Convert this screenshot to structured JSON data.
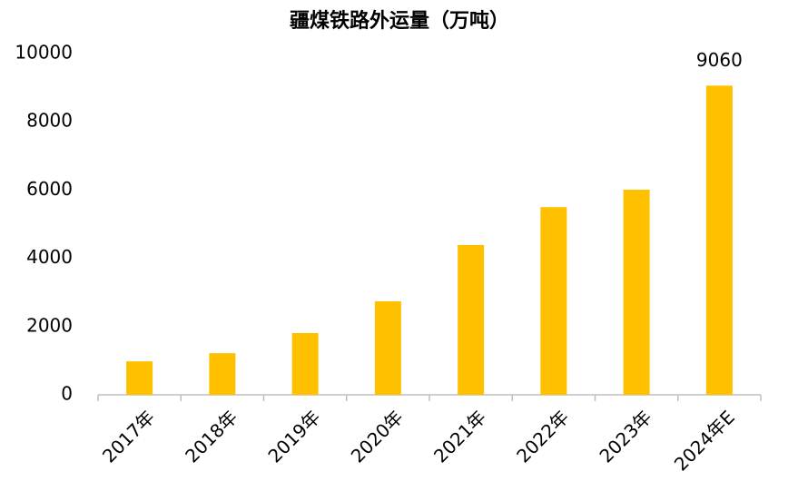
{
  "chart_data": {
    "type": "bar",
    "title": "疆煤铁路外运量（万吨）",
    "categories": [
      "2017年",
      "2018年",
      "2019年",
      "2020年",
      "2021年",
      "2022年",
      "2023年",
      "2024年E"
    ],
    "values": [
      980,
      1220,
      1810,
      2740,
      4390,
      5500,
      6010,
      9060
    ],
    "value_labels": [
      null,
      null,
      null,
      null,
      null,
      null,
      null,
      "9060"
    ],
    "color": "#FFC000",
    "ylim": [
      0,
      10000
    ],
    "yticks": [
      0,
      2000,
      4000,
      6000,
      8000,
      10000
    ],
    "grid": false
  }
}
